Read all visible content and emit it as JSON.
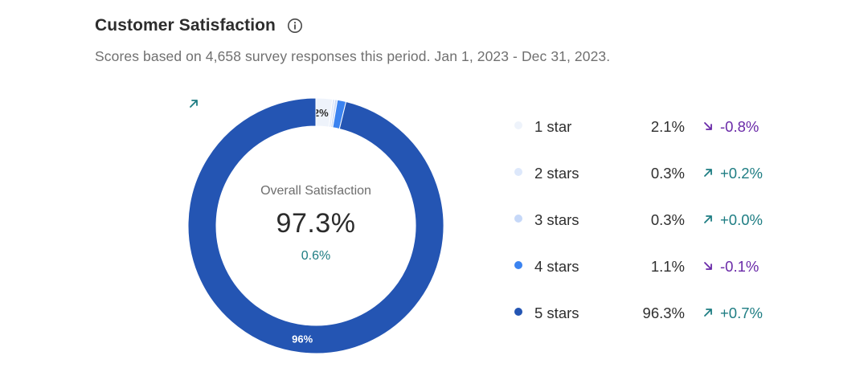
{
  "header": {
    "title": "Customer Satisfaction",
    "subtitle": "Scores based on 4,658 survey responses this period. Jan 1, 2023 - Dec 31, 2023.",
    "info_icon": "info-circle-icon"
  },
  "summary": {
    "label": "Overall Satisfaction",
    "value": "97.3%",
    "change": "0.6%",
    "change_direction": "up"
  },
  "chart_data": {
    "type": "pie",
    "categories": [
      "1 star",
      "2 stars",
      "3 stars",
      "4 stars",
      "5 stars"
    ],
    "values": [
      2.1,
      0.3,
      0.3,
      1.1,
      96.3
    ],
    "slice_labels": [
      "2%",
      "",
      "",
      "",
      "96%"
    ],
    "colors": [
      "#eef3fb",
      "#dde8fb",
      "#c6d8f8",
      "#3b83f0",
      "#2455b3"
    ],
    "changes": [
      "-0.8%",
      "+0.2%",
      "+0.0%",
      "-0.1%",
      "+0.7%"
    ],
    "change_directions": [
      "down",
      "up",
      "up",
      "down",
      "up"
    ],
    "percent_labels": [
      "2.1%",
      "0.3%",
      "0.3%",
      "1.1%",
      "96.3%"
    ],
    "legend_position": "right"
  }
}
